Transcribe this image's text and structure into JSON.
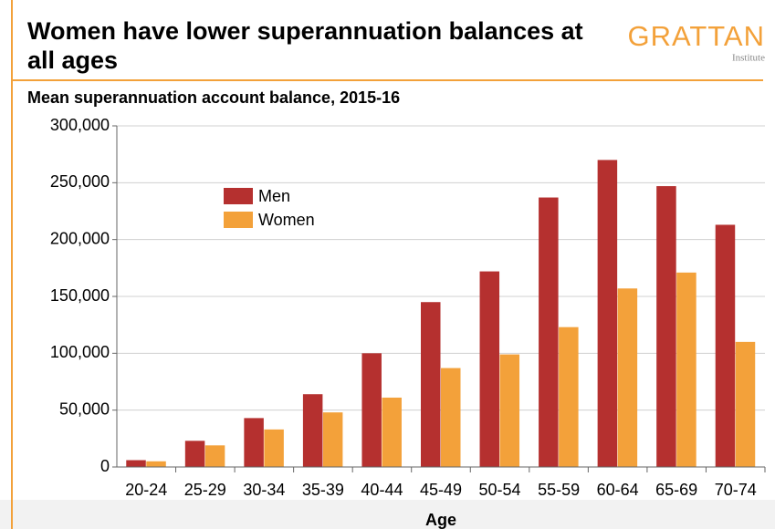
{
  "chart_data": {
    "type": "bar",
    "title": "Women have lower superannuation balances at all ages",
    "subtitle": "Mean superannuation account balance, 2015-16",
    "logo": {
      "name": "GRATTAN",
      "tagline": "Institute"
    },
    "x_label": "Age",
    "categories": [
      "20-24",
      "25-29",
      "30-34",
      "35-39",
      "40-44",
      "45-49",
      "50-54",
      "55-59",
      "60-64",
      "65-69",
      "70-74"
    ],
    "series": [
      {
        "name": "Men",
        "color": "#b5302f",
        "values": [
          6000,
          23000,
          43000,
          64000,
          100000,
          145000,
          172000,
          237000,
          270000,
          247000,
          213000
        ]
      },
      {
        "name": "Women",
        "color": "#f3a13a",
        "values": [
          5000,
          19000,
          33000,
          48000,
          61000,
          87000,
          99000,
          123000,
          157000,
          171000,
          110000
        ]
      }
    ],
    "ylim": [
      0,
      300000
    ],
    "yticks": [
      0,
      {
        "value": 50000,
        "label": "50,000"
      },
      {
        "value": 100000,
        "label": "100,000"
      },
      {
        "value": 150000,
        "label": "150,000"
      },
      {
        "value": 200000,
        "label": "200,000"
      },
      {
        "value": 250000,
        "label": "250,000"
      },
      {
        "value": 300000,
        "label": "300,000"
      }
    ],
    "grid": true,
    "legend": "upper-left"
  }
}
